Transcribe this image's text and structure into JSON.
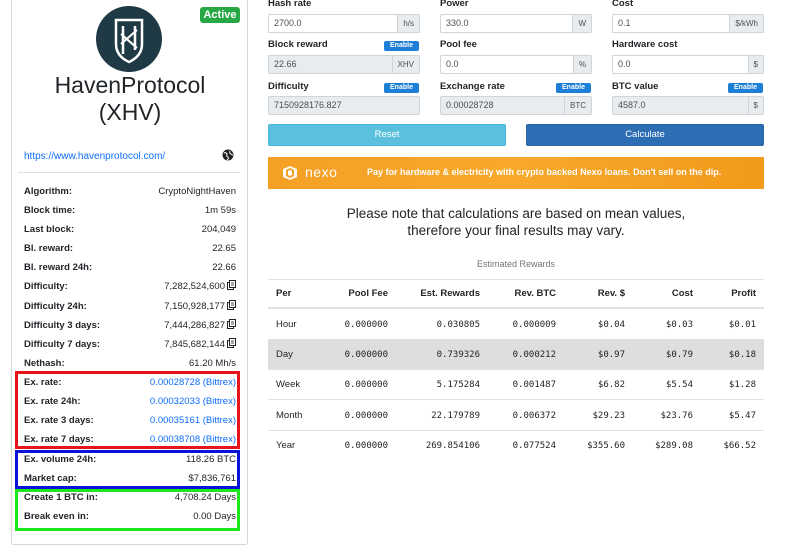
{
  "sidebar": {
    "badge": "Active",
    "coin_name_line1": "HavenProtocol",
    "coin_name_line2": "(XHV)",
    "website": "https://www.havenprotocol.com/",
    "stats": [
      {
        "label": "Algorithm:",
        "value": "CryptoNightHaven"
      },
      {
        "label": "Block time:",
        "value": "1m 59s"
      },
      {
        "label": "Last block:",
        "value": "204,049"
      },
      {
        "label": "Bl. reward:",
        "value": "22.65"
      },
      {
        "label": "Bl. reward 24h:",
        "value": "22.66"
      },
      {
        "label": "Difficulty:",
        "value": "7,282,524,600"
      },
      {
        "label": "Difficulty 24h:",
        "value": "7,150,928,177"
      },
      {
        "label": "Difficulty 3 days:",
        "value": "7,444,286,827"
      },
      {
        "label": "Difficulty 7 days:",
        "value": "7,845,682,144"
      },
      {
        "label": "Nethash:",
        "value": "61.20 Mh/s"
      },
      {
        "label": "Ex. rate:",
        "value": "0.00028728 (Bittrex)"
      },
      {
        "label": "Ex. rate 24h:",
        "value": "0.00032033 (Bittrex)"
      },
      {
        "label": "Ex. rate 3 days:",
        "value": "0.00035161 (Bittrex)"
      },
      {
        "label": "Ex. rate 7 days:",
        "value": "0.00038708 (Bittrex)"
      },
      {
        "label": "Ex. volume 24h:",
        "value": "118.26 BTC"
      },
      {
        "label": "Market cap:",
        "value": "$7,836,761"
      },
      {
        "label": "Create 1 BTC in:",
        "value": "4,708.24 Days"
      },
      {
        "label": "Break even in:",
        "value": "0.00 Days"
      }
    ],
    "highlight_colors": {
      "red": "#e8141b",
      "blue": "#0a14d8",
      "green": "#1de81d"
    }
  },
  "form": {
    "hash_rate": {
      "label": "Hash rate",
      "value": "2700.0",
      "unit": "h/s"
    },
    "power": {
      "label": "Power",
      "value": "330.0",
      "unit": "W"
    },
    "cost": {
      "label": "Cost",
      "value": "0.1",
      "unit": "$/kWh"
    },
    "block_reward": {
      "label": "Block reward",
      "value": "22.66",
      "unit": "XHV",
      "enable": "Enable"
    },
    "pool_fee": {
      "label": "Pool fee",
      "value": "0.0",
      "unit": "%"
    },
    "hardware_cost": {
      "label": "Hardware cost",
      "value": "0.0",
      "unit": "$"
    },
    "difficulty": {
      "label": "Difficulty",
      "value": "7150928176.827",
      "enable": "Enable"
    },
    "exchange_rate": {
      "label": "Exchange rate",
      "value": "0.00028728",
      "unit": "BTC",
      "enable": "Enable"
    },
    "btc_value": {
      "label": "BTC value",
      "value": "4587.0",
      "unit": "$",
      "enable": "Enable"
    },
    "reset_label": "Reset",
    "calculate_label": "Calculate"
  },
  "banner": {
    "brand": "nexo",
    "text": "Pay for hardware & electricity with crypto backed Nexo loans. Don't sell on the dip."
  },
  "note": {
    "line1": "Please note that calculations are based on mean values,",
    "line2": "therefore your final results may vary."
  },
  "rewards": {
    "title": "Estimated Rewards",
    "headers": [
      "Per",
      "Pool Fee",
      "Est. Rewards",
      "Rev. BTC",
      "Rev. $",
      "Cost",
      "Profit"
    ],
    "rows": [
      [
        "Hour",
        "0.000000",
        "0.030805",
        "0.000009",
        "$0.04",
        "$0.03",
        "$0.01"
      ],
      [
        "Day",
        "0.000000",
        "0.739326",
        "0.000212",
        "$0.97",
        "$0.79",
        "$0.18"
      ],
      [
        "Week",
        "0.000000",
        "5.175284",
        "0.001487",
        "$6.82",
        "$5.54",
        "$1.28"
      ],
      [
        "Month",
        "0.000000",
        "22.179789",
        "0.006372",
        "$29.23",
        "$23.76",
        "$5.47"
      ],
      [
        "Year",
        "0.000000",
        "269.854106",
        "0.077524",
        "$355.60",
        "$289.08",
        "$66.52"
      ]
    ]
  }
}
